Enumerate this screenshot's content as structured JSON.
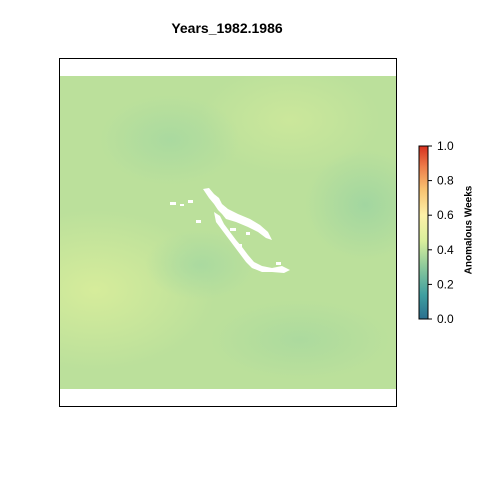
{
  "title": "Years_1982.1986",
  "legend": {
    "label": "Anomalous Weeks",
    "ticks": [
      "0.0",
      "0.2",
      "0.4",
      "0.6",
      "0.8",
      "1.0"
    ],
    "colors": [
      "#2a6f8f",
      "#3f9fa0",
      "#8bc99b",
      "#d9ef9c",
      "#fdf1a8",
      "#f8c270",
      "#ed7d4a",
      "#d7301f"
    ]
  },
  "map": {
    "background_color": "#b9df9b",
    "highlight_color": "#d4ec9c",
    "cool_color": "#a6d8a0"
  }
}
